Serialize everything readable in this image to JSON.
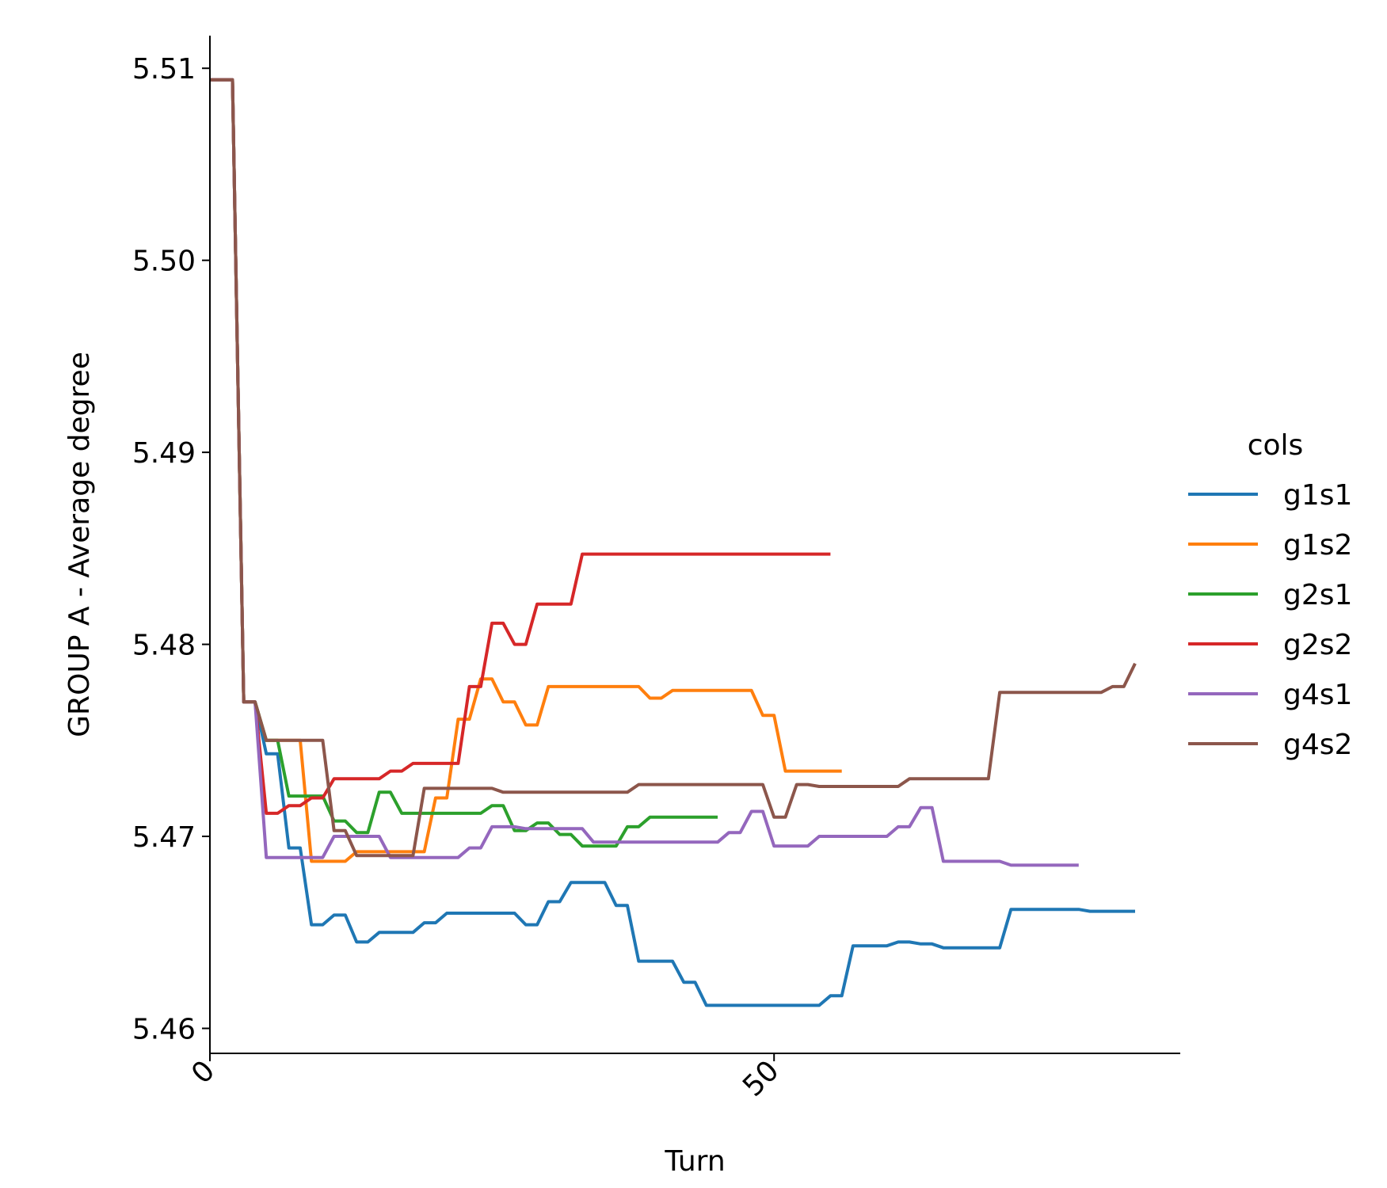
{
  "chart_data": {
    "type": "line",
    "xlabel": "Turn",
    "ylabel": "GROUP A - Average degree",
    "xlim": [
      0,
      86
    ],
    "ylim": [
      5.4587,
      5.5117
    ],
    "x_ticks": [
      0,
      50
    ],
    "y_ticks": [
      5.46,
      5.47,
      5.48,
      5.49,
      5.5,
      5.51
    ],
    "y_tick_labels": [
      "5.46",
      "5.47",
      "5.48",
      "5.49",
      "5.50",
      "5.51"
    ],
    "x_tick_labels": [
      "0",
      "50"
    ],
    "grid": false,
    "legend": {
      "title": "cols",
      "placement": "right"
    },
    "series": [
      {
        "name": "g1s1",
        "color": "#1f77b4",
        "x": [
          0,
          1,
          2,
          3,
          4,
          5,
          6,
          7,
          8,
          9,
          10,
          11,
          12,
          13,
          14,
          15,
          16,
          17,
          18,
          19,
          20,
          21,
          22,
          23,
          24,
          25,
          26,
          27,
          28,
          29,
          30,
          31,
          32,
          33,
          34,
          35,
          36,
          37,
          38,
          39,
          40,
          41,
          42,
          43,
          44,
          45,
          46,
          47,
          48,
          49,
          50,
          51,
          52,
          53,
          54,
          55,
          56,
          57,
          58,
          59,
          60,
          61,
          62,
          63,
          64,
          65,
          66,
          67,
          68,
          69,
          70,
          71,
          72,
          73,
          74,
          75,
          76,
          77,
          78,
          79,
          80,
          81,
          82
        ],
        "values": [
          5.5094,
          5.5094,
          5.5094,
          5.477,
          5.477,
          5.4743,
          5.4743,
          5.4694,
          5.4694,
          5.4654,
          5.4654,
          5.4659,
          5.4659,
          5.4645,
          5.4645,
          5.465,
          5.465,
          5.465,
          5.465,
          5.4655,
          5.4655,
          5.466,
          5.466,
          5.466,
          5.466,
          5.466,
          5.466,
          5.466,
          5.4654,
          5.4654,
          5.4666,
          5.4666,
          5.4676,
          5.4676,
          5.4676,
          5.4676,
          5.4664,
          5.4664,
          5.4635,
          5.4635,
          5.4635,
          5.4635,
          5.4624,
          5.4624,
          5.4612,
          5.4612,
          5.4612,
          5.4612,
          5.4612,
          5.4612,
          5.4612,
          5.4612,
          5.4612,
          5.4612,
          5.4612,
          5.4617,
          5.4617,
          5.4643,
          5.4643,
          5.4643,
          5.4643,
          5.4645,
          5.4645,
          5.4644,
          5.4644,
          5.4642,
          5.4642,
          5.4642,
          5.4642,
          5.4642,
          5.4642,
          5.4662,
          5.4662,
          5.4662,
          5.4662,
          5.4662,
          5.4662,
          5.4662,
          5.4661,
          5.4661,
          5.4661,
          5.4661,
          5.4661
        ]
      },
      {
        "name": "g1s2",
        "color": "#ff7f0e",
        "x": [
          0,
          1,
          2,
          3,
          4,
          5,
          6,
          7,
          8,
          9,
          10,
          11,
          12,
          13,
          14,
          15,
          16,
          17,
          18,
          19,
          20,
          21,
          22,
          23,
          24,
          25,
          26,
          27,
          28,
          29,
          30,
          31,
          32,
          33,
          34,
          35,
          36,
          37,
          38,
          39,
          40,
          41,
          42,
          43,
          44,
          45,
          46,
          47,
          48,
          49,
          50,
          51,
          52,
          53,
          54,
          55,
          56
        ],
        "values": [
          5.5094,
          5.5094,
          5.5094,
          5.477,
          5.477,
          5.475,
          5.475,
          5.475,
          5.475,
          5.4687,
          5.4687,
          5.4687,
          5.4687,
          5.4692,
          5.4692,
          5.4692,
          5.4692,
          5.4692,
          5.4692,
          5.4692,
          5.472,
          5.472,
          5.4761,
          5.4761,
          5.4782,
          5.4782,
          5.477,
          5.477,
          5.4758,
          5.4758,
          5.4778,
          5.4778,
          5.4778,
          5.4778,
          5.4778,
          5.4778,
          5.4778,
          5.4778,
          5.4778,
          5.4772,
          5.4772,
          5.4776,
          5.4776,
          5.4776,
          5.4776,
          5.4776,
          5.4776,
          5.4776,
          5.4776,
          5.4763,
          5.4763,
          5.4734,
          5.4734,
          5.4734,
          5.4734,
          5.4734,
          5.4734
        ]
      },
      {
        "name": "g2s1",
        "color": "#2ca02c",
        "x": [
          0,
          1,
          2,
          3,
          4,
          5,
          6,
          7,
          8,
          9,
          10,
          11,
          12,
          13,
          14,
          15,
          16,
          17,
          18,
          19,
          20,
          21,
          22,
          23,
          24,
          25,
          26,
          27,
          28,
          29,
          30,
          31,
          32,
          33,
          34,
          35,
          36,
          37,
          38,
          39,
          40,
          41,
          42,
          43,
          44,
          45
        ],
        "values": [
          5.5094,
          5.5094,
          5.5094,
          5.477,
          5.477,
          5.475,
          5.475,
          5.4721,
          5.4721,
          5.4721,
          5.4721,
          5.4708,
          5.4708,
          5.4702,
          5.4702,
          5.4723,
          5.4723,
          5.4712,
          5.4712,
          5.4712,
          5.4712,
          5.4712,
          5.4712,
          5.4712,
          5.4712,
          5.4716,
          5.4716,
          5.4703,
          5.4703,
          5.4707,
          5.4707,
          5.4701,
          5.4701,
          5.4695,
          5.4695,
          5.4695,
          5.4695,
          5.4705,
          5.4705,
          5.471,
          5.471,
          5.471,
          5.471,
          5.471,
          5.471,
          5.471
        ]
      },
      {
        "name": "g2s2",
        "color": "#d62728",
        "x": [
          0,
          1,
          2,
          3,
          4,
          5,
          6,
          7,
          8,
          9,
          10,
          11,
          12,
          13,
          14,
          15,
          16,
          17,
          18,
          19,
          20,
          21,
          22,
          23,
          24,
          25,
          26,
          27,
          28,
          29,
          30,
          31,
          32,
          33,
          34,
          35,
          36,
          37,
          38,
          39,
          40,
          41,
          42,
          43,
          44,
          45,
          46,
          47,
          48,
          49,
          50,
          51,
          52,
          53,
          54,
          55
        ],
        "values": [
          5.5094,
          5.5094,
          5.5094,
          5.477,
          5.477,
          5.4712,
          5.4712,
          5.4716,
          5.4716,
          5.472,
          5.472,
          5.473,
          5.473,
          5.473,
          5.473,
          5.473,
          5.4734,
          5.4734,
          5.4738,
          5.4738,
          5.4738,
          5.4738,
          5.4738,
          5.4778,
          5.4778,
          5.4811,
          5.4811,
          5.48,
          5.48,
          5.4821,
          5.4821,
          5.4821,
          5.4821,
          5.4847,
          5.4847,
          5.4847,
          5.4847,
          5.4847,
          5.4847,
          5.4847,
          5.4847,
          5.4847,
          5.4847,
          5.4847,
          5.4847,
          5.4847,
          5.4847,
          5.4847,
          5.4847,
          5.4847,
          5.4847,
          5.4847,
          5.4847,
          5.4847,
          5.4847,
          5.4847
        ]
      },
      {
        "name": "g4s1",
        "color": "#9467bd",
        "x": [
          0,
          1,
          2,
          3,
          4,
          5,
          6,
          7,
          8,
          9,
          10,
          11,
          12,
          13,
          14,
          15,
          16,
          17,
          18,
          19,
          20,
          21,
          22,
          23,
          24,
          25,
          26,
          27,
          28,
          29,
          30,
          31,
          32,
          33,
          34,
          35,
          36,
          37,
          38,
          39,
          40,
          41,
          42,
          43,
          44,
          45,
          46,
          47,
          48,
          49,
          50,
          51,
          52,
          53,
          54,
          55,
          56,
          57,
          58,
          59,
          60,
          61,
          62,
          63,
          64,
          65,
          66,
          67,
          68,
          69,
          70,
          71,
          72,
          73,
          74,
          75,
          76,
          77
        ],
        "values": [
          5.5094,
          5.5094,
          5.5094,
          5.477,
          5.477,
          5.4689,
          5.4689,
          5.4689,
          5.4689,
          5.4689,
          5.4689,
          5.47,
          5.47,
          5.47,
          5.47,
          5.47,
          5.4689,
          5.4689,
          5.4689,
          5.4689,
          5.4689,
          5.4689,
          5.4689,
          5.4694,
          5.4694,
          5.4705,
          5.4705,
          5.4705,
          5.4704,
          5.4704,
          5.4704,
          5.4704,
          5.4704,
          5.4704,
          5.4697,
          5.4697,
          5.4697,
          5.4697,
          5.4697,
          5.4697,
          5.4697,
          5.4697,
          5.4697,
          5.4697,
          5.4697,
          5.4697,
          5.4702,
          5.4702,
          5.4713,
          5.4713,
          5.4695,
          5.4695,
          5.4695,
          5.4695,
          5.47,
          5.47,
          5.47,
          5.47,
          5.47,
          5.47,
          5.47,
          5.4705,
          5.4705,
          5.4715,
          5.4715,
          5.4687,
          5.4687,
          5.4687,
          5.4687,
          5.4687,
          5.4687,
          5.4685,
          5.4685,
          5.4685,
          5.4685,
          5.4685,
          5.4685,
          5.4685
        ]
      },
      {
        "name": "g4s2",
        "color": "#8c564b",
        "x": [
          0,
          1,
          2,
          3,
          4,
          5,
          6,
          7,
          8,
          9,
          10,
          11,
          12,
          13,
          14,
          15,
          16,
          17,
          18,
          19,
          20,
          21,
          22,
          23,
          24,
          25,
          26,
          27,
          28,
          29,
          30,
          31,
          32,
          33,
          34,
          35,
          36,
          37,
          38,
          39,
          40,
          41,
          42,
          43,
          44,
          45,
          46,
          47,
          48,
          49,
          50,
          51,
          52,
          53,
          54,
          55,
          56,
          57,
          58,
          59,
          60,
          61,
          62,
          63,
          64,
          65,
          66,
          67,
          68,
          69,
          70,
          71,
          72,
          73,
          74,
          75,
          76,
          77,
          78,
          79,
          80,
          81,
          82
        ],
        "values": [
          5.5094,
          5.5094,
          5.5094,
          5.477,
          5.477,
          5.475,
          5.475,
          5.475,
          5.475,
          5.475,
          5.475,
          5.4703,
          5.4703,
          5.469,
          5.469,
          5.469,
          5.469,
          5.469,
          5.469,
          5.4725,
          5.4725,
          5.4725,
          5.4725,
          5.4725,
          5.4725,
          5.4725,
          5.4723,
          5.4723,
          5.4723,
          5.4723,
          5.4723,
          5.4723,
          5.4723,
          5.4723,
          5.4723,
          5.4723,
          5.4723,
          5.4723,
          5.4727,
          5.4727,
          5.4727,
          5.4727,
          5.4727,
          5.4727,
          5.4727,
          5.4727,
          5.4727,
          5.4727,
          5.4727,
          5.4727,
          5.471,
          5.471,
          5.4727,
          5.4727,
          5.4726,
          5.4726,
          5.4726,
          5.4726,
          5.4726,
          5.4726,
          5.4726,
          5.4726,
          5.473,
          5.473,
          5.473,
          5.473,
          5.473,
          5.473,
          5.473,
          5.473,
          5.4775,
          5.4775,
          5.4775,
          5.4775,
          5.4775,
          5.4775,
          5.4775,
          5.4775,
          5.4775,
          5.4775,
          5.4778,
          5.4778,
          5.479
        ]
      }
    ]
  }
}
